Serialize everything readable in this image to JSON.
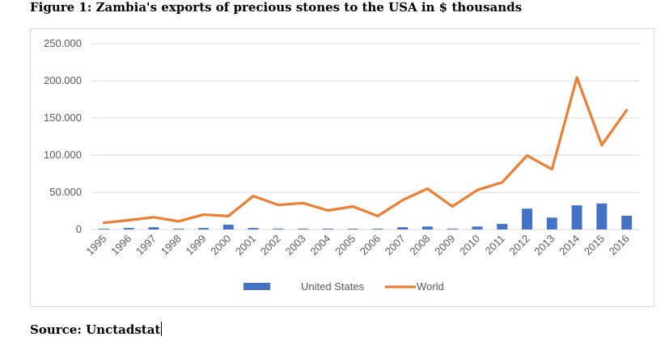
{
  "figure_title": "Figure 1: Zambia's exports of precious stones to the USA in $ thousands",
  "source": "Source: Unctadstat",
  "colors": {
    "us": "#4472c4",
    "world": "#ed7d31",
    "grid": "#d9d9d9",
    "text": "#595959"
  },
  "chart_data": {
    "type": "bar",
    "categories": [
      "1995",
      "1996",
      "1997",
      "1998",
      "1999",
      "2000",
      "2001",
      "2002",
      "2003",
      "2004",
      "2005",
      "2006",
      "2007",
      "2008",
      "2009",
      "2010",
      "2011",
      "2012",
      "2013",
      "2014",
      "2015",
      "2016"
    ],
    "series": [
      {
        "name": "United States",
        "type": "bar",
        "values": [
          1000,
          2000,
          3000,
          1000,
          2000,
          6500,
          2000,
          1000,
          1000,
          1000,
          1000,
          1000,
          3000,
          4000,
          1000,
          4000,
          7500,
          28000,
          16000,
          32500,
          35000,
          18500
        ]
      },
      {
        "name": "World",
        "type": "line",
        "values": [
          9000,
          12500,
          16500,
          11000,
          20000,
          18000,
          45000,
          33000,
          35500,
          25500,
          31000,
          18000,
          39500,
          55000,
          31000,
          53000,
          63500,
          99500,
          81000,
          204500,
          113500,
          160500
        ]
      }
    ],
    "ylim": [
      0,
      250000
    ],
    "yticks": [
      "0",
      "50.000",
      "100.000",
      "150.000",
      "200.000",
      "250.000"
    ],
    "ytick_values": [
      0,
      50000,
      100000,
      150000,
      200000,
      250000
    ],
    "grid": true,
    "legend_position": "bottom"
  }
}
